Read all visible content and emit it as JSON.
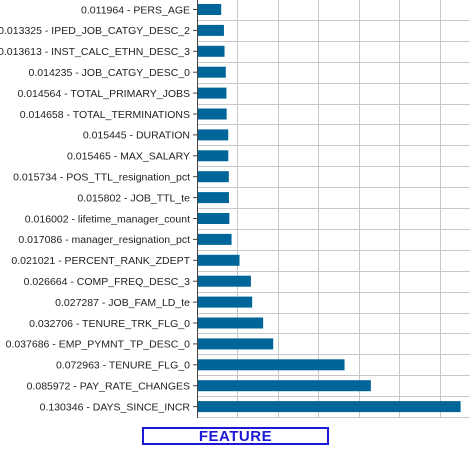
{
  "footer": {
    "label": "FEATURE"
  },
  "colors": {
    "bar": "#006699",
    "grid": "#c8c8c8",
    "axis": "#444444",
    "text": "#222222",
    "footer": "#1a1ad6"
  },
  "chart_data": {
    "type": "bar",
    "orientation": "horizontal",
    "title": "",
    "xlabel": "",
    "ylabel": "",
    "grid": true,
    "xlim": [
      0,
      0.135
    ],
    "categories": [
      "0.011964 - PERS_AGE",
      "0.013325 - IPED_JOB_CATGY_DESC_2",
      "0.013613 - INST_CALC_ETHN_DESC_3",
      "0.014235 - JOB_CATGY_DESC_0",
      "0.014564 - TOTAL_PRIMARY_JOBS",
      "0.014658 - TOTAL_TERMINATIONS",
      "0.015445 - DURATION",
      "0.015465 - MAX_SALARY",
      "0.015734 - POS_TTL_resignation_pct",
      "0.015802 - JOB_TTL_te",
      "0.016002 - lifetime_manager_count",
      "0.017086 - manager_resignation_pct",
      "0.021021 - PERCENT_RANK_ZDEPT",
      "0.026664 - COMP_FREQ_DESC_3",
      "0.027287 - JOB_FAM_LD_te",
      "0.032706 - TENURE_TRK_FLG_0",
      "0.037686 - EMP_PYMNT_TP_DESC_0",
      "0.072963 - TENURE_FLG_0",
      "0.085972 - PAY_RATE_CHANGES",
      "0.130346 - DAYS_SINCE_INCR"
    ],
    "values": [
      0.011964,
      0.013325,
      0.013613,
      0.014235,
      0.014564,
      0.014658,
      0.015445,
      0.015465,
      0.015734,
      0.015802,
      0.016002,
      0.017086,
      0.021021,
      0.026664,
      0.027287,
      0.032706,
      0.037686,
      0.072963,
      0.085972,
      0.130346
    ]
  }
}
